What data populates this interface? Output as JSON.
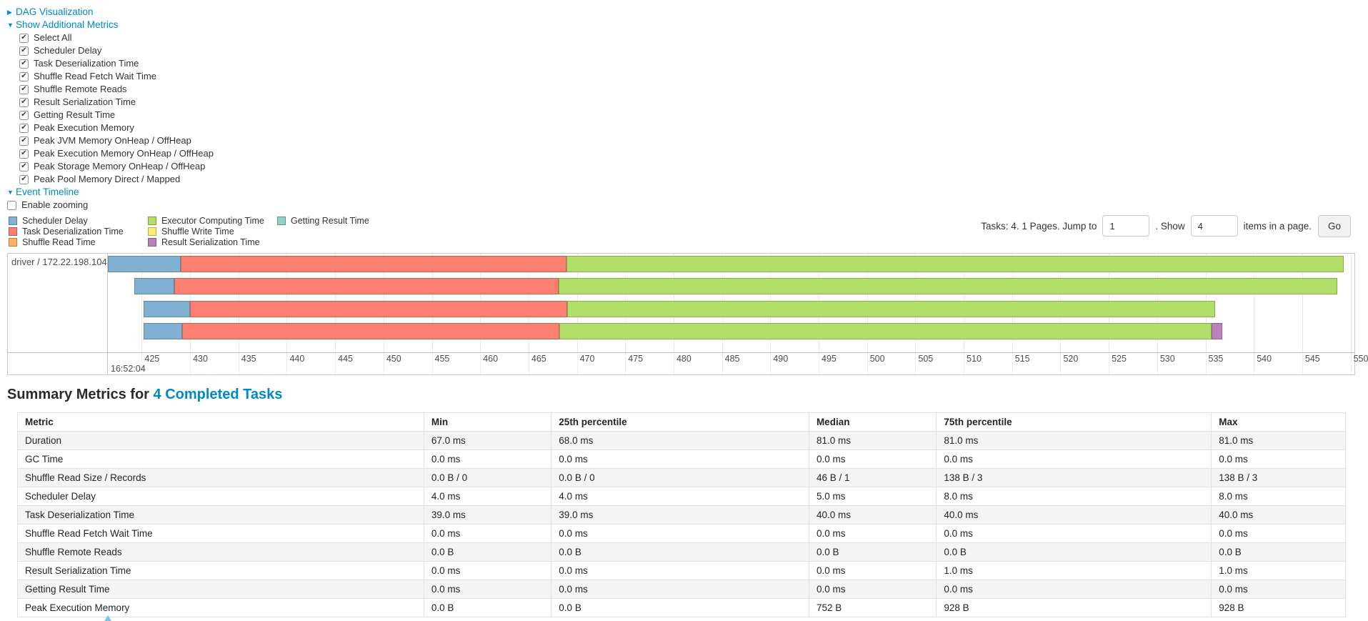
{
  "colors": {
    "link": "#0088cc",
    "scheduler_delay": "#80B1D3",
    "task_deserialization_time": "#FB8072",
    "shuffle_read_time": "#FDB462",
    "executor_computing_time": "#B3DE69",
    "shuffle_write_time": "#FFED6F",
    "result_serialization_time": "#BC80BD",
    "getting_result_time": "#8DD3C7"
  },
  "sections": {
    "dag": {
      "label": "DAG Visualization",
      "collapsed": true
    },
    "metrics": {
      "label": "Show Additional Metrics",
      "collapsed": false
    },
    "timeline": {
      "label": "Event Timeline",
      "collapsed": false
    }
  },
  "metric_checkboxes": [
    {
      "label": "Select All",
      "checked": true
    },
    {
      "label": "Scheduler Delay",
      "checked": true
    },
    {
      "label": "Task Deserialization Time",
      "checked": true
    },
    {
      "label": "Shuffle Read Fetch Wait Time",
      "checked": true
    },
    {
      "label": "Shuffle Remote Reads",
      "checked": true
    },
    {
      "label": "Result Serialization Time",
      "checked": true
    },
    {
      "label": "Getting Result Time",
      "checked": true
    },
    {
      "label": "Peak Execution Memory",
      "checked": true
    },
    {
      "label": "Peak JVM Memory OnHeap / OffHeap",
      "checked": true
    },
    {
      "label": "Peak Execution Memory OnHeap / OffHeap",
      "checked": true
    },
    {
      "label": "Peak Storage Memory OnHeap / OffHeap",
      "checked": true
    },
    {
      "label": "Peak Pool Memory Direct / Mapped",
      "checked": true
    }
  ],
  "enable_zooming": {
    "label": "Enable zooming",
    "checked": false
  },
  "legend": {
    "columns": [
      [
        {
          "label": "Scheduler Delay",
          "color_key": "scheduler_delay"
        },
        {
          "label": "Task Deserialization Time",
          "color_key": "task_deserialization_time"
        },
        {
          "label": "Shuffle Read Time",
          "color_key": "shuffle_read_time"
        }
      ],
      [
        {
          "label": "Executor Computing Time",
          "color_key": "executor_computing_time"
        },
        {
          "label": "Shuffle Write Time",
          "color_key": "shuffle_write_time"
        },
        {
          "label": "Result Serialization Time",
          "color_key": "result_serialization_time"
        }
      ],
      [
        {
          "label": "Getting Result Time",
          "color_key": "getting_result_time"
        }
      ]
    ]
  },
  "pagination": {
    "summary": "Tasks: 4. 1 Pages. Jump to",
    "jump_value": "1",
    "show_label": ". Show",
    "show_value": "4",
    "suffix": "items in a page.",
    "go_label": "Go"
  },
  "chart_data": {
    "type": "timeline-bar",
    "row_label": "driver / 172.22.198.104",
    "axis": {
      "min": 421.5,
      "max": 550.4,
      "tick_step": 5,
      "ticks": [
        425,
        430,
        435,
        440,
        445,
        450,
        455,
        460,
        465,
        470,
        475,
        480,
        485,
        490,
        495,
        500,
        505,
        510,
        515,
        520,
        525,
        530,
        535,
        540,
        545,
        550
      ],
      "major_label": "16:52:04"
    },
    "tasks": [
      {
        "segments": [
          {
            "kind": "scheduler_delay",
            "start": 421.5,
            "end": 429.0
          },
          {
            "kind": "task_deserialization_time",
            "start": 429.0,
            "end": 468.9
          },
          {
            "kind": "executor_computing_time",
            "start": 468.9,
            "end": 549.3
          }
        ]
      },
      {
        "segments": [
          {
            "kind": "scheduler_delay",
            "start": 424.2,
            "end": 428.4
          },
          {
            "kind": "task_deserialization_time",
            "start": 428.4,
            "end": 468.1
          },
          {
            "kind": "executor_computing_time",
            "start": 468.1,
            "end": 548.6
          }
        ]
      },
      {
        "segments": [
          {
            "kind": "scheduler_delay",
            "start": 425.2,
            "end": 430.0
          },
          {
            "kind": "task_deserialization_time",
            "start": 430.0,
            "end": 469.0
          },
          {
            "kind": "executor_computing_time",
            "start": 469.0,
            "end": 536.0
          }
        ]
      },
      {
        "segments": [
          {
            "kind": "scheduler_delay",
            "start": 425.2,
            "end": 429.2
          },
          {
            "kind": "task_deserialization_time",
            "start": 429.2,
            "end": 468.2
          },
          {
            "kind": "executor_computing_time",
            "start": 468.2,
            "end": 535.6
          },
          {
            "kind": "result_serialization_time",
            "start": 535.6,
            "end": 536.7
          }
        ]
      }
    ]
  },
  "summary": {
    "title_prefix": "Summary Metrics for ",
    "title_link": "4 Completed Tasks",
    "table": {
      "headers": [
        "Metric",
        "Min",
        "25th percentile",
        "Median",
        "75th percentile",
        "Max"
      ],
      "rows": [
        {
          "metric": "Duration",
          "values": [
            "67.0 ms",
            "68.0 ms",
            "81.0 ms",
            "81.0 ms",
            "81.0 ms"
          ]
        },
        {
          "metric": "GC Time",
          "values": [
            "0.0 ms",
            "0.0 ms",
            "0.0 ms",
            "0.0 ms",
            "0.0 ms"
          ]
        },
        {
          "metric": "Shuffle Read Size / Records",
          "values": [
            "0.0 B / 0",
            "0.0 B / 0",
            "46 B / 1",
            "138 B / 3",
            "138 B / 3"
          ]
        },
        {
          "metric": "Scheduler Delay",
          "values": [
            "4.0 ms",
            "4.0 ms",
            "5.0 ms",
            "8.0 ms",
            "8.0 ms"
          ]
        },
        {
          "metric": "Task Deserialization Time",
          "values": [
            "39.0 ms",
            "39.0 ms",
            "40.0 ms",
            "40.0 ms",
            "40.0 ms"
          ]
        },
        {
          "metric": "Shuffle Read Fetch Wait Time",
          "values": [
            "0.0 ms",
            "0.0 ms",
            "0.0 ms",
            "0.0 ms",
            "0.0 ms"
          ]
        },
        {
          "metric": "Shuffle Remote Reads",
          "values": [
            "0.0 B",
            "0.0 B",
            "0.0 B",
            "0.0 B",
            "0.0 B"
          ]
        },
        {
          "metric": "Result Serialization Time",
          "values": [
            "0.0 ms",
            "0.0 ms",
            "0.0 ms",
            "1.0 ms",
            "1.0 ms"
          ]
        },
        {
          "metric": "Getting Result Time",
          "values": [
            "0.0 ms",
            "0.0 ms",
            "0.0 ms",
            "0.0 ms",
            "0.0 ms"
          ]
        },
        {
          "metric": "Peak Execution Memory",
          "values": [
            "0.0 B",
            "0.0 B",
            "752 B",
            "928 B",
            "928 B"
          ]
        }
      ]
    }
  }
}
